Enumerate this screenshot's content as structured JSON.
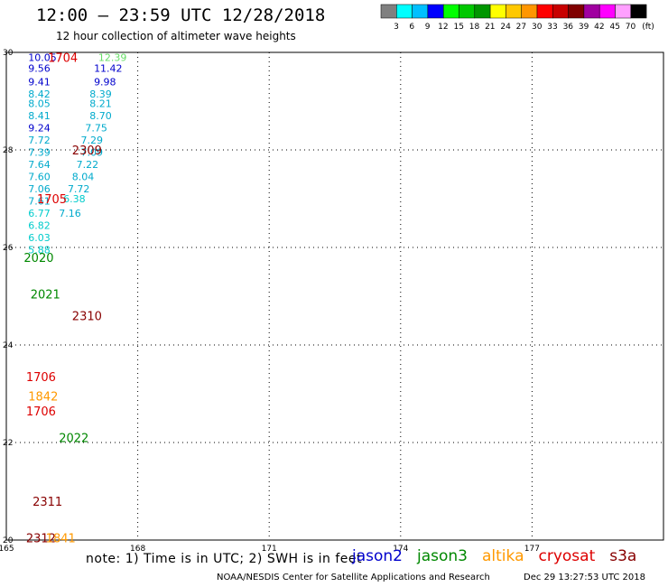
{
  "header": {
    "title": "12:00 – 23:59 UTC 12/28/2018",
    "subtitle": "12 hour collection of altimeter wave heights"
  },
  "legend": {
    "colors": [
      "#808080",
      "#00ffff",
      "#00bfff",
      "#0000ff",
      "#00ff00",
      "#00c800",
      "#009600",
      "#ffff00",
      "#ffc800",
      "#ff9600",
      "#ff0000",
      "#c80000",
      "#800000",
      "#a000a0",
      "#ff00ff",
      "#ffa0ff",
      "#000000"
    ],
    "labels": [
      "3",
      "6",
      "9",
      "12",
      "15",
      "18",
      "21",
      "24",
      "27",
      "30",
      "33",
      "36",
      "39",
      "42",
      "45",
      "70"
    ],
    "unit": "(ft)"
  },
  "footer": {
    "note": "note: 1) Time is in UTC; 2) SWH is in feet",
    "missions": [
      {
        "name": "jason2",
        "color": "#0000cc"
      },
      {
        "name": "jason3",
        "color": "#008800"
      },
      {
        "name": "altika",
        "color": "#ff9900"
      },
      {
        "name": "cryosat",
        "color": "#dd0000"
      },
      {
        "name": "s3a",
        "color": "#880000"
      }
    ],
    "credit": "NOAA/NESDIS Center for Satellite Applications and Research",
    "timestamp": "Dec 29 13:27:53 UTC 2018"
  },
  "chart_data": {
    "type": "scatter",
    "title": "12:00 – 23:59 UTC 12/28/2018",
    "subtitle": "12 hour collection of altimeter wave heights",
    "xlabel": "",
    "ylabel": "",
    "xlim": [
      165,
      180
    ],
    "ylim": [
      20,
      30
    ],
    "xticks": [
      "165",
      "168",
      "171",
      "174",
      "177"
    ],
    "yticks": [
      "20",
      "22",
      "24",
      "26",
      "28",
      "30"
    ],
    "grid": true,
    "values": [
      {
        "lon": 165.5,
        "lat": 29.9,
        "v": "10.05",
        "color": "#0000cc"
      },
      {
        "lon": 165.5,
        "lat": 29.68,
        "v": "9.56",
        "color": "#0000cc"
      },
      {
        "lon": 165.5,
        "lat": 29.4,
        "v": "9.41",
        "color": "#0000cc"
      },
      {
        "lon": 165.5,
        "lat": 29.15,
        "v": "8.42",
        "color": "#00aacc"
      },
      {
        "lon": 165.5,
        "lat": 28.95,
        "v": "8.05",
        "color": "#00aacc"
      },
      {
        "lon": 165.5,
        "lat": 28.7,
        "v": "8.41",
        "color": "#00aacc"
      },
      {
        "lon": 165.5,
        "lat": 28.45,
        "v": "9.24",
        "color": "#0000cc"
      },
      {
        "lon": 165.5,
        "lat": 28.2,
        "v": "7.72",
        "color": "#00aacc"
      },
      {
        "lon": 165.5,
        "lat": 27.95,
        "v": "7.39",
        "color": "#00aacc"
      },
      {
        "lon": 165.5,
        "lat": 27.7,
        "v": "7.64",
        "color": "#00aacc"
      },
      {
        "lon": 165.5,
        "lat": 27.45,
        "v": "7.60",
        "color": "#00aacc"
      },
      {
        "lon": 165.5,
        "lat": 27.2,
        "v": "7.06",
        "color": "#00aacc"
      },
      {
        "lon": 165.5,
        "lat": 26.95,
        "v": "7.61",
        "color": "#00aacc"
      },
      {
        "lon": 165.5,
        "lat": 26.7,
        "v": "6.77",
        "color": "#00cccc"
      },
      {
        "lon": 165.5,
        "lat": 26.45,
        "v": "6.82",
        "color": "#00cccc"
      },
      {
        "lon": 165.5,
        "lat": 26.2,
        "v": "6.03",
        "color": "#00cccc"
      },
      {
        "lon": 165.5,
        "lat": 25.95,
        "v": "5.88",
        "color": "#00cccc"
      },
      {
        "lon": 167.1,
        "lat": 29.9,
        "v": "12.39",
        "color": "#66dd66"
      },
      {
        "lon": 167.0,
        "lat": 29.68,
        "v": "11.42",
        "color": "#0000cc"
      },
      {
        "lon": 167.0,
        "lat": 29.4,
        "v": "9.98",
        "color": "#0000cc"
      },
      {
        "lon": 166.9,
        "lat": 29.15,
        "v": "8.39",
        "color": "#00aacc"
      },
      {
        "lon": 166.9,
        "lat": 28.95,
        "v": "8.21",
        "color": "#00aacc"
      },
      {
        "lon": 166.9,
        "lat": 28.7,
        "v": "8.70",
        "color": "#00aacc"
      },
      {
        "lon": 166.8,
        "lat": 28.45,
        "v": "7.75",
        "color": "#00aacc"
      },
      {
        "lon": 166.7,
        "lat": 28.2,
        "v": "7.29",
        "color": "#00aacc"
      },
      {
        "lon": 166.7,
        "lat": 27.95,
        "v": "7.09",
        "color": "#00aacc"
      },
      {
        "lon": 166.6,
        "lat": 27.7,
        "v": "7.22",
        "color": "#00aacc"
      },
      {
        "lon": 166.5,
        "lat": 27.45,
        "v": "8.04",
        "color": "#00aacc"
      },
      {
        "lon": 166.4,
        "lat": 27.2,
        "v": "7.72",
        "color": "#00aacc"
      },
      {
        "lon": 166.3,
        "lat": 27.0,
        "v": "6.38",
        "color": "#00cccc"
      },
      {
        "lon": 166.2,
        "lat": 26.7,
        "v": "7.16",
        "color": "#00aacc"
      }
    ],
    "labels": [
      {
        "lon": 165.95,
        "lat": 29.9,
        "v": "1704",
        "color": "#dd0000"
      },
      {
        "lon": 166.5,
        "lat": 28.0,
        "v": "2309",
        "color": "#880000"
      },
      {
        "lon": 165.7,
        "lat": 27.0,
        "v": "1705",
        "color": "#dd0000"
      },
      {
        "lon": 165.4,
        "lat": 25.8,
        "v": "2020",
        "color": "#008800"
      },
      {
        "lon": 165.55,
        "lat": 25.05,
        "v": "2021",
        "color": "#008800"
      },
      {
        "lon": 166.5,
        "lat": 24.6,
        "v": "2310",
        "color": "#880000"
      },
      {
        "lon": 165.45,
        "lat": 23.35,
        "v": "1706",
        "color": "#dd0000"
      },
      {
        "lon": 165.5,
        "lat": 22.95,
        "v": "1842",
        "color": "#ff9900"
      },
      {
        "lon": 165.45,
        "lat": 22.65,
        "v": "1706",
        "color": "#dd0000"
      },
      {
        "lon": 166.2,
        "lat": 22.1,
        "v": "2022",
        "color": "#008800"
      },
      {
        "lon": 165.6,
        "lat": 20.8,
        "v": "2311",
        "color": "#880000"
      },
      {
        "lon": 165.45,
        "lat": 20.05,
        "v": "2312",
        "color": "#880000"
      },
      {
        "lon": 165.9,
        "lat": 20.05,
        "v": "1841",
        "color": "#ff9900"
      }
    ]
  }
}
